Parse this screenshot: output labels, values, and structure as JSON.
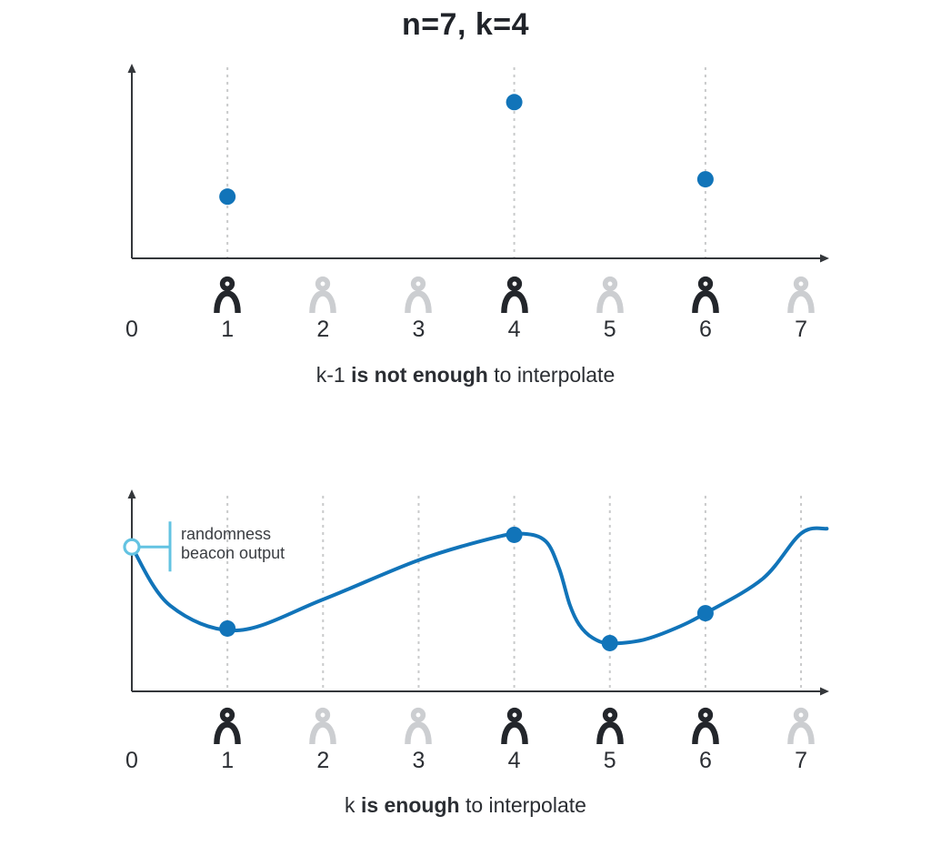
{
  "title": "n=7, k=4",
  "colors": {
    "blue": "#1174b9",
    "light_blue": "#63c3e2",
    "dark_icon": "#23262b",
    "light_icon": "#ccced1",
    "dotted_line": "#c9cacb",
    "axis": "#34373b"
  },
  "participants_axis": [
    "0",
    "1",
    "2",
    "3",
    "4",
    "5",
    "6",
    "7"
  ],
  "charts": [
    {
      "id": "top",
      "type": "scatter",
      "caption_parts": [
        {
          "text": "k-1 ",
          "bold": false
        },
        {
          "text": "is not enough",
          "bold": true
        },
        {
          "text": " to interpolate",
          "bold": false
        }
      ],
      "dotted_lines": [
        1,
        4,
        6
      ],
      "active_participants": [
        1,
        4,
        6
      ],
      "inactive_participants": [
        2,
        3,
        5,
        7
      ],
      "points": [
        {
          "x": 1,
          "v": 0.32
        },
        {
          "x": 4,
          "v": 0.81
        },
        {
          "x": 6,
          "v": 0.41
        }
      ],
      "open_point": null,
      "curve_samples": null,
      "callout": null
    },
    {
      "id": "bottom",
      "type": "line",
      "caption_parts": [
        {
          "text": "k ",
          "bold": false
        },
        {
          "text": "is enough",
          "bold": true
        },
        {
          "text": " to interpolate",
          "bold": false
        }
      ],
      "dotted_lines": [
        1,
        2,
        3,
        4,
        5,
        6,
        7
      ],
      "active_participants": [
        1,
        4,
        5,
        6
      ],
      "inactive_participants": [
        2,
        3,
        7
      ],
      "points": [
        {
          "x": 1,
          "v": 0.311
        },
        {
          "x": 4,
          "v": 0.775
        },
        {
          "x": 5,
          "v": 0.239
        },
        {
          "x": 6,
          "v": 0.387
        }
      ],
      "open_point": {
        "x": 0,
        "v": 0.715
      },
      "curve_samples": [
        [
          0,
          0.715
        ],
        [
          0.4,
          0.425
        ],
        [
          1.1,
          0.302
        ],
        [
          2,
          0.455
        ],
        [
          3,
          0.65
        ],
        [
          3.8,
          0.762
        ],
        [
          4.1,
          0.78
        ],
        [
          4.33,
          0.743
        ],
        [
          4.47,
          0.608
        ],
        [
          4.58,
          0.43
        ],
        [
          4.68,
          0.33
        ],
        [
          4.82,
          0.265
        ],
        [
          5,
          0.238
        ],
        [
          5.35,
          0.255
        ],
        [
          5.7,
          0.315
        ],
        [
          6,
          0.387
        ],
        [
          6.6,
          0.558
        ],
        [
          7,
          0.782
        ],
        [
          7.27,
          0.806
        ]
      ],
      "callout": {
        "line1": "randomness",
        "line2": "beacon output"
      }
    }
  ]
}
